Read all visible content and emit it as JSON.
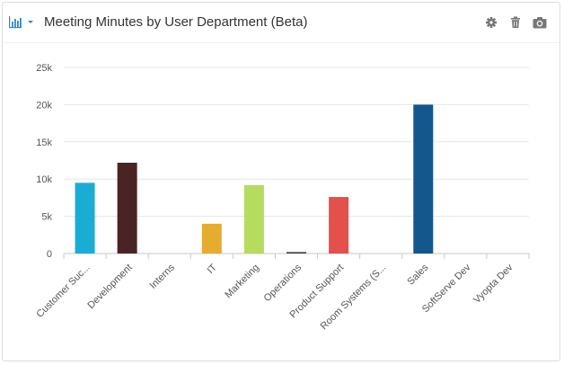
{
  "header": {
    "title": "Meeting Minutes by User Department (Beta)",
    "chart_type_icon": "bar-chart-icon",
    "dropdown_icon": "caret-down-icon",
    "settings_icon": "gear-icon",
    "delete_icon": "trash-icon",
    "snapshot_icon": "camera-icon",
    "accent_color": "#2e87c8",
    "icon_color": "#777777"
  },
  "chart_data": {
    "type": "bar",
    "title": "",
    "xlabel": "",
    "ylabel": "",
    "ylim": [
      0,
      25000
    ],
    "yticks": [
      0,
      5000,
      10000,
      15000,
      20000,
      25000
    ],
    "ytick_labels": [
      "0",
      "5k",
      "10k",
      "15k",
      "20k",
      "25k"
    ],
    "grid": true,
    "categories": [
      "Customer Suc...",
      "Development",
      "Interns",
      "IT",
      "Marketing",
      "Operations",
      "Product Support",
      "Room Systems (S...",
      "Sales",
      "SoftServe Dev",
      "Vyopta Dev"
    ],
    "values": [
      9500,
      12200,
      0,
      4000,
      9200,
      200,
      7600,
      0,
      20000,
      0,
      0
    ],
    "colors": [
      "#1aadd4",
      "#4a2424",
      "#cccccc",
      "#e6ac30",
      "#b5dc5e",
      "#444444",
      "#e4504a",
      "#cccccc",
      "#14578f",
      "#cccccc",
      "#cccccc"
    ]
  }
}
